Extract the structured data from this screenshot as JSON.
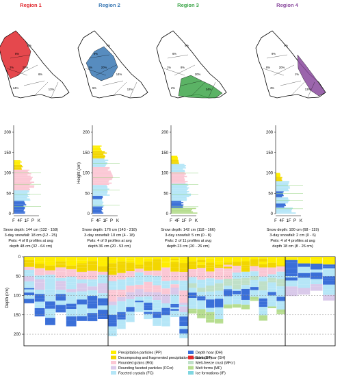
{
  "chart_data": {
    "type": "panel",
    "regions": [
      {
        "title": "Region 1",
        "color": "#e0282e",
        "map_pcts": [
          "8%",
          "5%",
          "2%",
          "20%",
          "6%",
          "14%",
          "13%"
        ],
        "snow_depth": "Snow depth: 144 cm (132 - 158)",
        "snowfall": "3-day snowfall: 18 cm (12 - 25)",
        "pwls": "Pwls: 4 of 8 profiles at avg",
        "pwl_depth": "depth 48 cm (32 - 64 cm)"
      },
      {
        "title": "Region 2",
        "color": "#3a78b4",
        "map_pcts": [
          "9%",
          "7%",
          "1%",
          "20%",
          "14%",
          "5%",
          "12%"
        ],
        "snow_depth": "Snow depth: 176 cm (143 - 218)",
        "snowfall": "3-day snowfall: 10 cm (4 - 18)",
        "pwls": "Pwls: 4 of 9 profiles at avg",
        "pwl_depth": "depth 36 cm (20 - 53 cm)"
      },
      {
        "title": "Region 3",
        "color": "#3ea64a",
        "map_pcts": [
          "6%",
          "4%",
          "1%",
          "8%",
          "20%",
          "2%",
          "34%"
        ],
        "snow_depth": "Snow depth: 142 cm (118 - 166)",
        "snowfall": "3-day snowfall: 5 cm (0 - 8)",
        "pwls": "Pwls: 2 of 11 profiles at avg",
        "pwl_depth": "depth 23 cm (20 - 26 cm)"
      },
      {
        "title": "Region 4",
        "color": "#8a4a9e",
        "map_pcts": [
          "9%",
          "4%",
          "8%",
          "20%",
          "1%",
          "3%",
          "13%"
        ],
        "snow_depth": "Snow depth: 100 cm (68 - 119)",
        "snowfall": "3-day snowfall: 2 cm (0 - 6)",
        "pwls": "Pwls: 4 of 4 profiles at avg",
        "pwl_depth": "depth 18 cm (8 - 26 cm)"
      }
    ],
    "profile_axis": {
      "ylabel": "Height (cm)",
      "yticks": [
        0,
        50,
        100,
        150,
        200
      ],
      "xticks": [
        "F",
        "4F",
        "1F",
        "P",
        "K"
      ]
    },
    "depth_axis": {
      "ylabel": "Depth (cm)",
      "yticks": [
        0,
        50,
        100,
        150,
        200
      ]
    },
    "legend": [
      {
        "label": "Precipitation particles (PP)",
        "color": "#ffee00"
      },
      {
        "label": "Decomposing and fragmented precipitation particles (DF)",
        "color": "#f2d600"
      },
      {
        "label": "Rounded grains (RG)",
        "color": "#fbc7d4"
      },
      {
        "label": "Rounding faceted particles (FCxr)",
        "color": "#d9c9ea"
      },
      {
        "label": "Faceted crystals (FC)",
        "color": "#b5e6f7"
      },
      {
        "label": "Depth hoar (DH)",
        "color": "#3a6fd8"
      },
      {
        "label": "Surface hoar (SH)",
        "color": "#e4262a"
      },
      {
        "label": "Melt-freeze crust (MFcr)",
        "color": "#bfe0c8"
      },
      {
        "label": "Melt forms (MF)",
        "color": "#b6dd8f"
      },
      {
        "label": "Ice formations (IF)",
        "color": "#7fd6e0"
      }
    ]
  }
}
